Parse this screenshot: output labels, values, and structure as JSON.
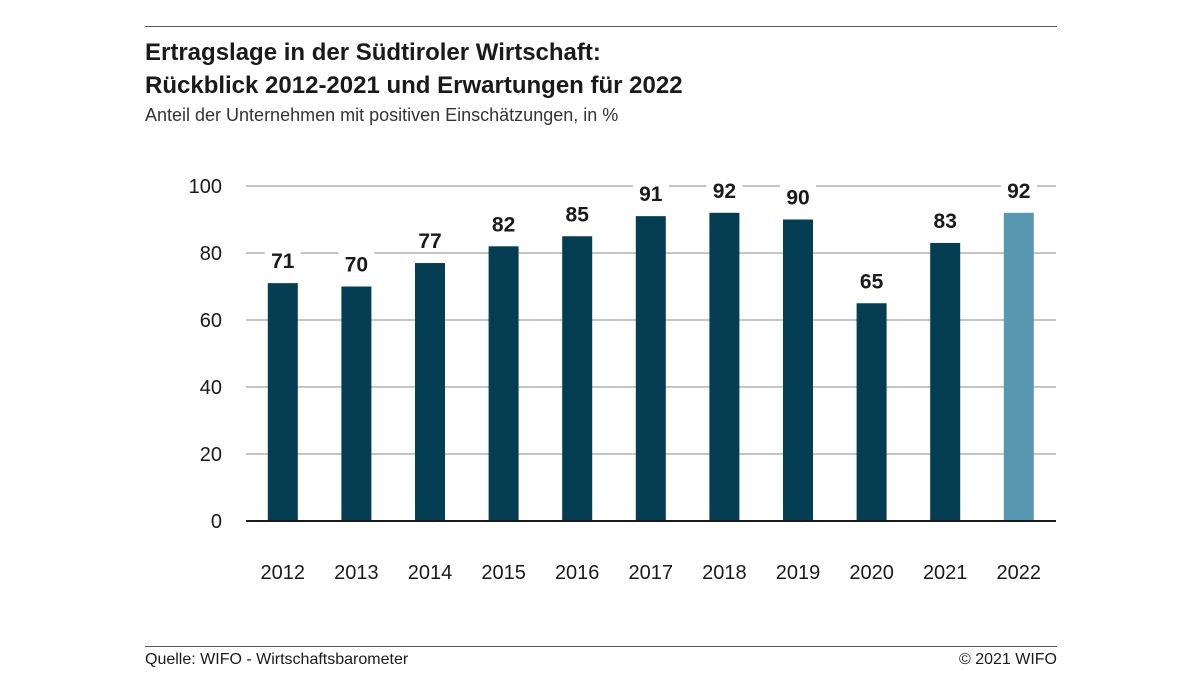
{
  "title_lines": [
    "Ertragslage in der Südtiroler Wirtschaft:",
    "Rückblick 2012-2021 und Erwartungen für 2022"
  ],
  "subtitle": "Anteil der Unternehmen mit positiven Einschätzungen, in %",
  "footer": {
    "source": "Quelle: WIFO - Wirtschaftsbarometer",
    "copyright": "© 2021 WIFO"
  },
  "colors": {
    "bar": "#053d52",
    "bar_highlight": "#5797b0",
    "grid": "#888888",
    "axis": "#1a1a1a",
    "label": "#1a1a1a"
  },
  "chart_data": {
    "type": "bar",
    "categories": [
      "2012",
      "2013",
      "2014",
      "2015",
      "2016",
      "2017",
      "2018",
      "2019",
      "2020",
      "2021",
      "2022"
    ],
    "values": [
      71,
      70,
      77,
      82,
      85,
      91,
      92,
      90,
      65,
      83,
      92
    ],
    "highlight": [
      "2022"
    ],
    "ylim": [
      0,
      100
    ],
    "yticks": [
      0,
      20,
      40,
      60,
      80,
      100
    ],
    "grid": true,
    "data_labels": true
  }
}
